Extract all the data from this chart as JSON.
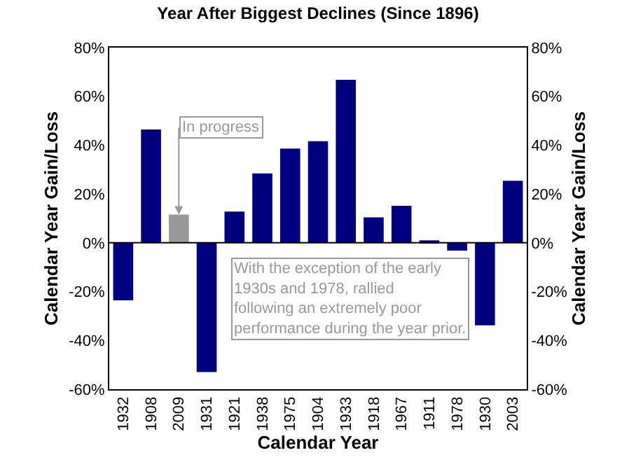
{
  "chart_data": {
    "type": "bar",
    "title": "Year After Biggest Declines (Since 1896)",
    "xlabel": "Calendar Year",
    "ylabel": "Calendar Year Gain/Loss",
    "y2label": "Calendar Year Gain/Loss",
    "categories": [
      "1932",
      "1908",
      "2009",
      "1931",
      "1921",
      "1938",
      "1975",
      "1904",
      "1933",
      "1918",
      "1967",
      "1911",
      "1978",
      "1930",
      "2003"
    ],
    "values": [
      -23.6,
      46.4,
      11.6,
      -53,
      12.8,
      28.4,
      38.6,
      41.6,
      66.8,
      10.4,
      15.2,
      1,
      -3.2,
      -33.8,
      25.4
    ],
    "colors": [
      "#000080",
      "#000080",
      "#999999",
      "#000080",
      "#000080",
      "#000080",
      "#000080",
      "#000080",
      "#000080",
      "#000080",
      "#000080",
      "#000080",
      "#000080",
      "#000080",
      "#000080"
    ],
    "ylim": [
      -60,
      80
    ],
    "yticks": [
      {
        "value": -60,
        "label": "-60%"
      },
      {
        "value": -40,
        "label": "-40%"
      },
      {
        "value": -20,
        "label": "-20%"
      },
      {
        "value": 0,
        "label": "0%"
      },
      {
        "value": 20,
        "label": "20%"
      },
      {
        "value": 40,
        "label": "40%"
      },
      {
        "value": 60,
        "label": "60%"
      },
      {
        "value": 80,
        "label": "80%"
      }
    ],
    "y2lim": [
      -60,
      80
    ],
    "y2ticks": [
      {
        "value": -60,
        "label": "-60%"
      },
      {
        "value": -40,
        "label": "-40%"
      },
      {
        "value": -20,
        "label": "-20%"
      },
      {
        "value": 0,
        "label": "0%"
      },
      {
        "value": 20,
        "label": "20%"
      },
      {
        "value": 40,
        "label": "40%"
      },
      {
        "value": 60,
        "label": "60%"
      },
      {
        "value": 80,
        "label": "80%"
      }
    ],
    "annotations": [
      {
        "text": "In progress",
        "x": "2009",
        "y": 11.6
      },
      "With the exception of the early\n1930s and 1978, rallied\nfollowing an extremely poor\nperformance during the year prior."
    ],
    "ref_lines": [
      {
        "axis": "y",
        "value": 0,
        "color": "#000000"
      }
    ]
  }
}
